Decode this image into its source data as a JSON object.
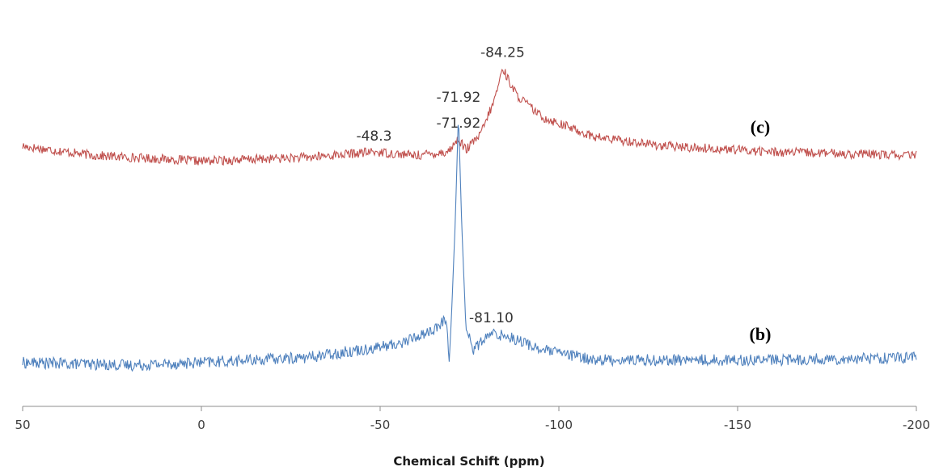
{
  "chart_data": {
    "type": "line",
    "title": "",
    "xlabel": "Chemical Schift (ppm)",
    "ylabel": "",
    "xlim": [
      50,
      -200
    ],
    "x_reversed": true,
    "x_ticks": [
      50,
      0,
      -50,
      -100,
      -150,
      -200
    ],
    "x_tick_labels": [
      "50",
      "0",
      "-50",
      "-100",
      "-150",
      "-200"
    ],
    "grid": false,
    "legend": "none",
    "series": [
      {
        "label": "(c)",
        "color": "#c0504d",
        "baseline": 0.25,
        "noise": 0.025,
        "points": [
          [
            50,
            0.3
          ],
          [
            30,
            0.25
          ],
          [
            0,
            0.22
          ],
          [
            -30,
            0.24
          ],
          [
            -48.3,
            0.27
          ],
          [
            -60,
            0.25
          ],
          [
            -69,
            0.27
          ],
          [
            -71.92,
            0.34
          ],
          [
            -74,
            0.28
          ],
          [
            -78,
            0.36
          ],
          [
            -82,
            0.55
          ],
          [
            -84.25,
            0.72
          ],
          [
            -88,
            0.58
          ],
          [
            -95,
            0.46
          ],
          [
            -110,
            0.35
          ],
          [
            -130,
            0.3
          ],
          [
            -160,
            0.27
          ],
          [
            -200,
            0.25
          ]
        ],
        "peaks": [
          {
            "x": -48.3,
            "label": "-48.3"
          },
          {
            "x": -71.92,
            "label": "-71.92"
          },
          {
            "x": -84.25,
            "label": "-84.25"
          }
        ]
      },
      {
        "label": "(b)",
        "color": "#4f81bd",
        "baseline": 0.05,
        "noise": 0.022,
        "points": [
          [
            50,
            0.05
          ],
          [
            20,
            0.04
          ],
          [
            0,
            0.05
          ],
          [
            -30,
            0.07
          ],
          [
            -55,
            0.12
          ],
          [
            -66,
            0.18
          ],
          [
            -68.5,
            0.22
          ],
          [
            -69.3,
            0.05
          ],
          [
            -70,
            0.24
          ],
          [
            -71,
            0.58
          ],
          [
            -71.92,
            1.0
          ],
          [
            -72.8,
            0.58
          ],
          [
            -74,
            0.18
          ],
          [
            -76,
            0.1
          ],
          [
            -81.1,
            0.16
          ],
          [
            -86,
            0.15
          ],
          [
            -95,
            0.1
          ],
          [
            -110,
            0.06
          ],
          [
            -160,
            0.06
          ],
          [
            -200,
            0.07
          ]
        ],
        "peaks": [
          {
            "x": -71.92,
            "label": "-71.92"
          },
          {
            "x": -81.1,
            "label": "-81.10"
          }
        ]
      }
    ]
  }
}
